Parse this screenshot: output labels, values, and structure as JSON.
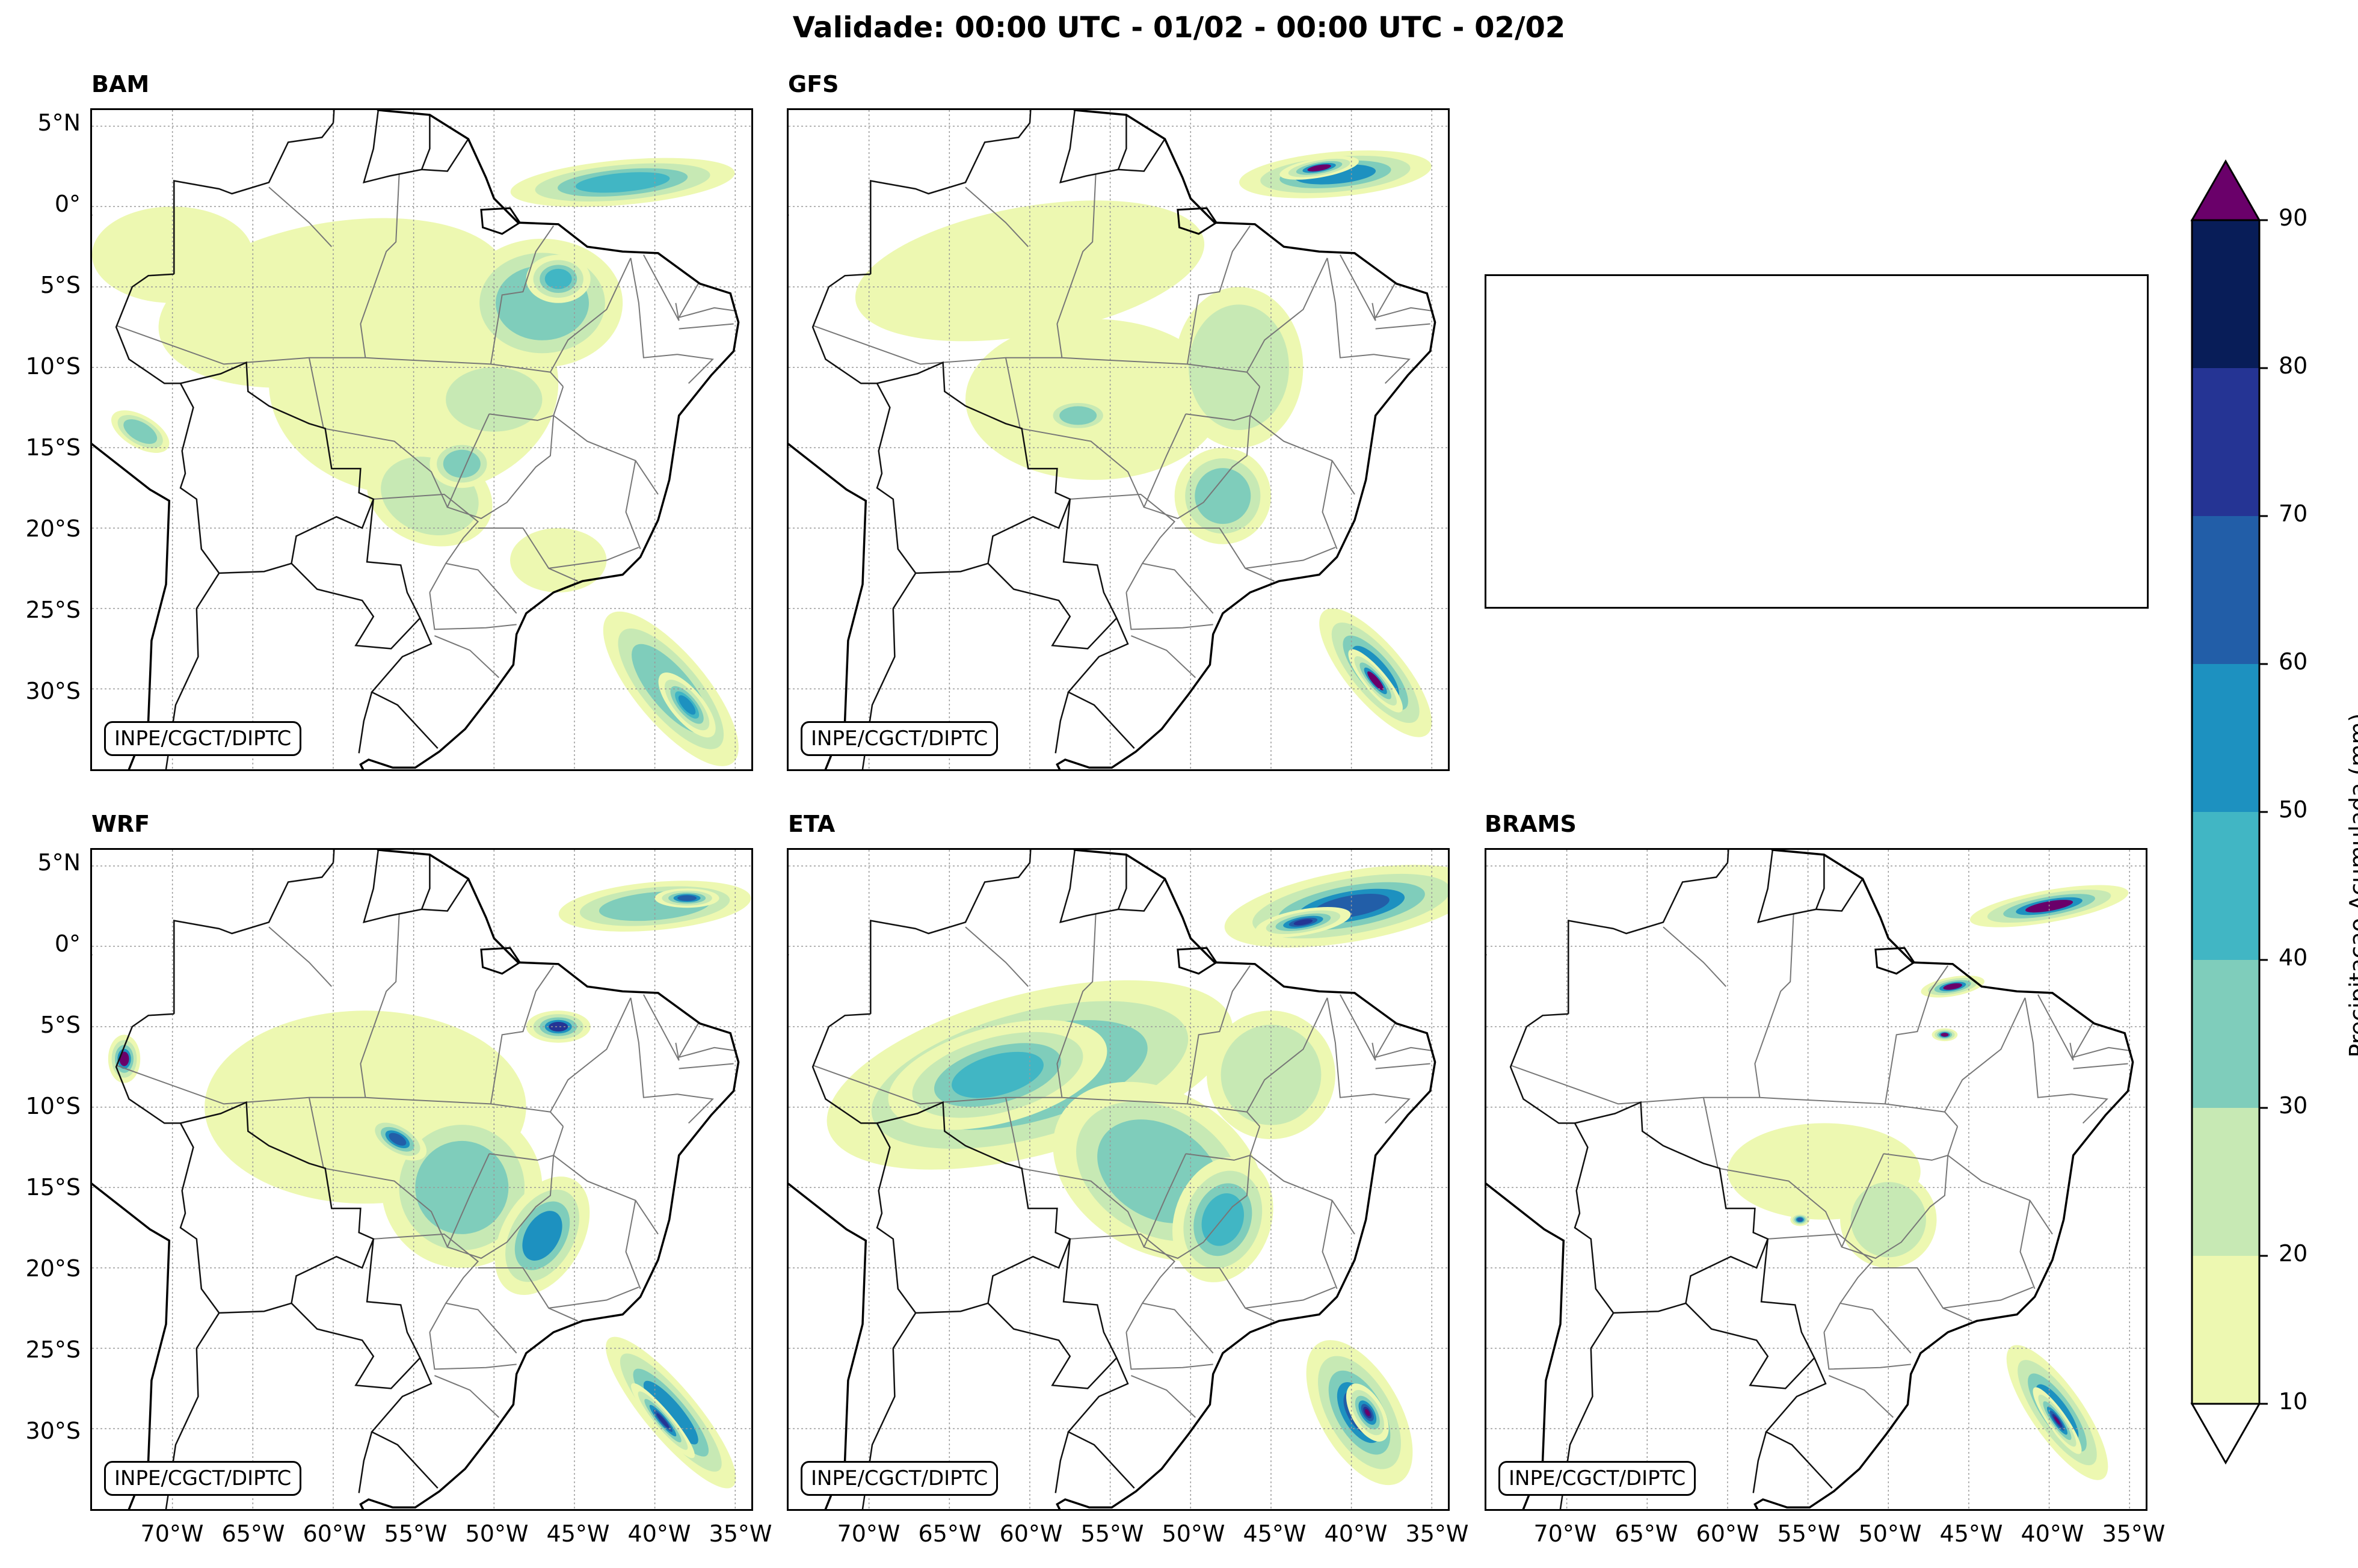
{
  "title": "Validade: 00:00 UTC - 01/02 - 00:00 UTC - 02/02",
  "panels": [
    {
      "name": "BAM",
      "credit": "INPE/CGCT/DIPTC"
    },
    {
      "name": "GFS",
      "credit": "INPE/CGCT/DIPTC"
    },
    {
      "name": "WRF",
      "credit": "INPE/CGCT/DIPTC"
    },
    {
      "name": "ETA",
      "credit": "INPE/CGCT/DIPTC"
    },
    {
      "name": "BRAMS",
      "credit": "INPE/CGCT/DIPTC"
    }
  ],
  "lat_ticks": [
    "5°N",
    "0°",
    "5°S",
    "10°S",
    "15°S",
    "20°S",
    "25°S",
    "30°S"
  ],
  "lon_ticks": [
    "70°W",
    "65°W",
    "60°W",
    "55°W",
    "50°W",
    "45°W",
    "40°W",
    "35°W"
  ],
  "colorbar": {
    "label": "Precipitacao Acumulada (mm)",
    "ticks": [
      "10",
      "20",
      "30",
      "40",
      "50",
      "60",
      "70",
      "80",
      "90"
    ],
    "colors": [
      "#edf8b1",
      "#c7e9b4",
      "#7fcdbb",
      "#41b6c4",
      "#1d91c0",
      "#225ea8",
      "#253494",
      "#081d58"
    ],
    "over_color": "#6a006a",
    "under_color": "#ffffff"
  },
  "rain_colors": {
    "light": "#edf8b1",
    "l2": "#c7e9b4",
    "mid": "#7fcdbb",
    "m2": "#41b6c4",
    "high": "#1d91c0",
    "h2": "#225ea8",
    "vhigh": "#253494",
    "extreme": "#6a006a"
  }
}
